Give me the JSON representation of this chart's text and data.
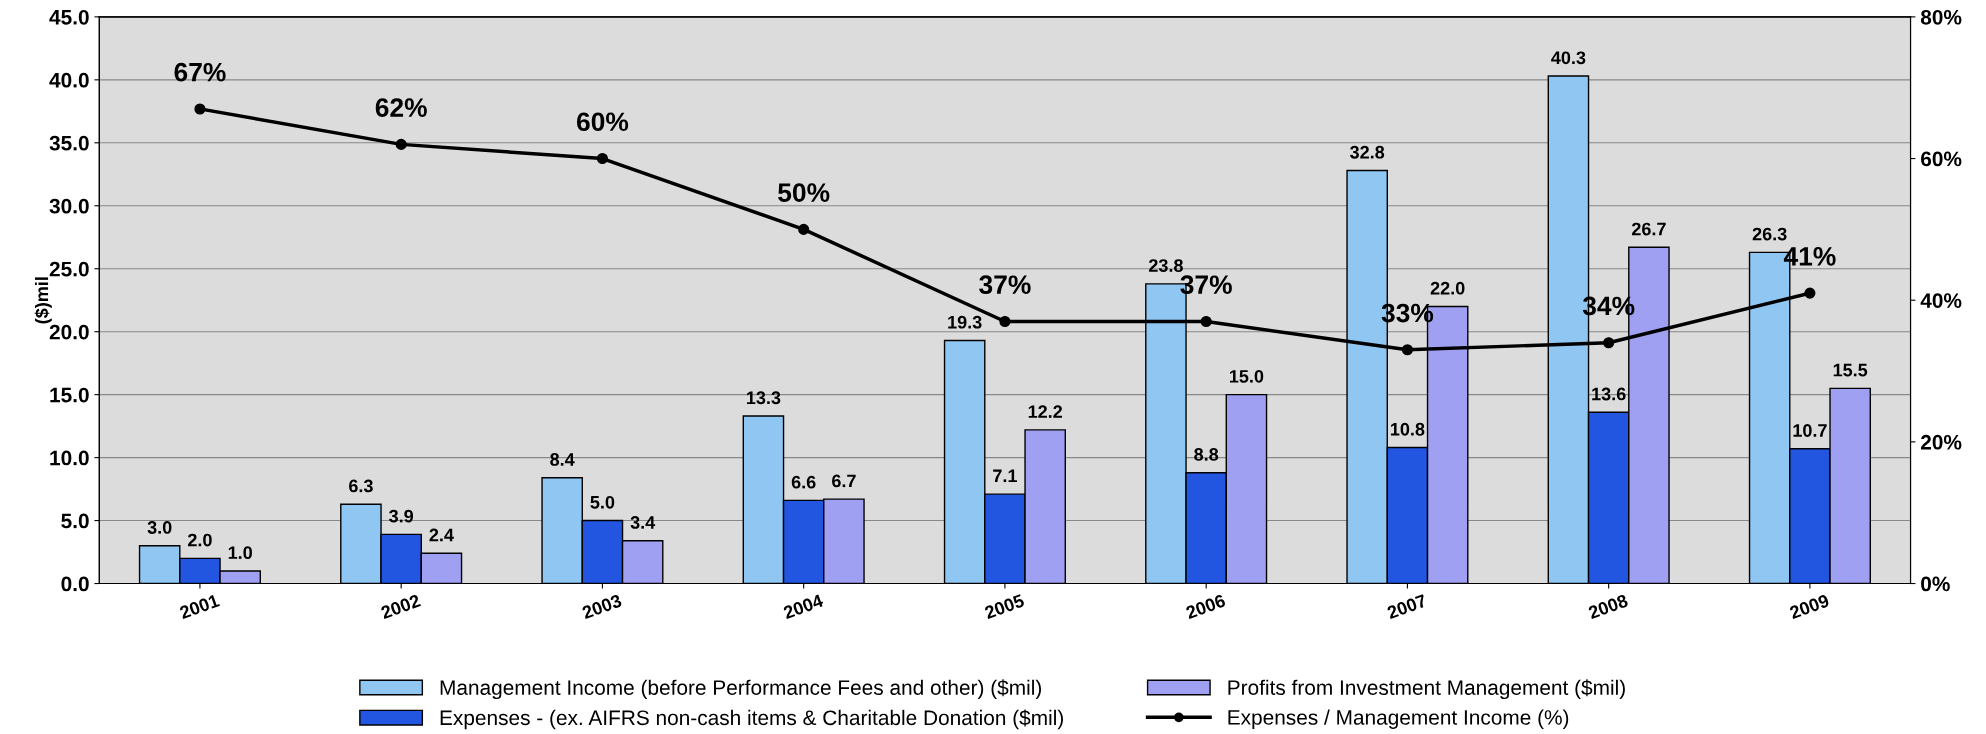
{
  "chart_data": {
    "type": "bar",
    "ylabel": "($)mil",
    "categories": [
      "2001",
      "2002",
      "2003",
      "2004",
      "2005",
      "2006",
      "2007",
      "2008",
      "2009"
    ],
    "series": [
      {
        "name": "Management Income (before Performance Fees and other) ($mil)",
        "color": "#8fc6f2",
        "values": [
          3.0,
          6.3,
          8.4,
          13.3,
          19.3,
          23.8,
          32.8,
          40.3,
          26.3
        ],
        "value_labels": [
          "3.0",
          "6.3",
          "8.4",
          "13.3",
          "19.3",
          "23.8",
          "32.8",
          "40.3",
          "26.3"
        ]
      },
      {
        "name": "Expenses - (ex. AIFRS non-cash items & Charitable Donation ($mil)",
        "color": "#2255e0",
        "values": [
          2.0,
          3.9,
          5.0,
          6.6,
          7.1,
          8.8,
          10.8,
          13.6,
          10.7
        ],
        "value_labels": [
          "2.0",
          "3.9",
          "5.0",
          "6.6",
          "7.1",
          "8.8",
          "10.8",
          "13.6",
          "10.7"
        ]
      },
      {
        "name": "Profits from Investment Management ($mil)",
        "color": "#a0a0f2",
        "values": [
          1.0,
          2.4,
          3.4,
          6.7,
          12.2,
          15.0,
          22.0,
          26.7,
          15.5
        ],
        "value_labels": [
          "1.0",
          "2.4",
          "3.4",
          "6.7",
          "12.2",
          "15.0",
          "22.0",
          "26.7",
          "15.5"
        ]
      },
      {
        "name": "Expenses / Management Income (%)",
        "type": "line",
        "axis": "y2",
        "color": "#000000",
        "marker": "circle",
        "values": [
          67,
          62,
          60,
          50,
          37,
          37,
          33,
          34,
          41
        ],
        "value_labels": [
          "67%",
          "62%",
          "60%",
          "50%",
          "37%",
          "37%",
          "33%",
          "34%",
          "41%"
        ]
      }
    ],
    "ylim": [
      0,
      45
    ],
    "yticks": [
      {
        "value": 0,
        "label": "0.0"
      },
      {
        "value": 5,
        "label": "5.0"
      },
      {
        "value": 10,
        "label": "10.0"
      },
      {
        "value": 15,
        "label": "15.0"
      },
      {
        "value": 20,
        "label": "20.0"
      },
      {
        "value": 25,
        "label": "25.0"
      },
      {
        "value": 30,
        "label": "30.0"
      },
      {
        "value": 35,
        "label": "35.0"
      },
      {
        "value": 40,
        "label": "40.0"
      },
      {
        "value": 45,
        "label": "45.0"
      }
    ],
    "y2lim": [
      0,
      80
    ],
    "y2ticks": [
      {
        "value": 0,
        "label": "0%"
      },
      {
        "value": 20,
        "label": "20%"
      },
      {
        "value": 40,
        "label": "40%"
      },
      {
        "value": 60,
        "label": "60%"
      },
      {
        "value": 80,
        "label": "80%"
      }
    ],
    "grid": "y",
    "legend": "bottom"
  }
}
